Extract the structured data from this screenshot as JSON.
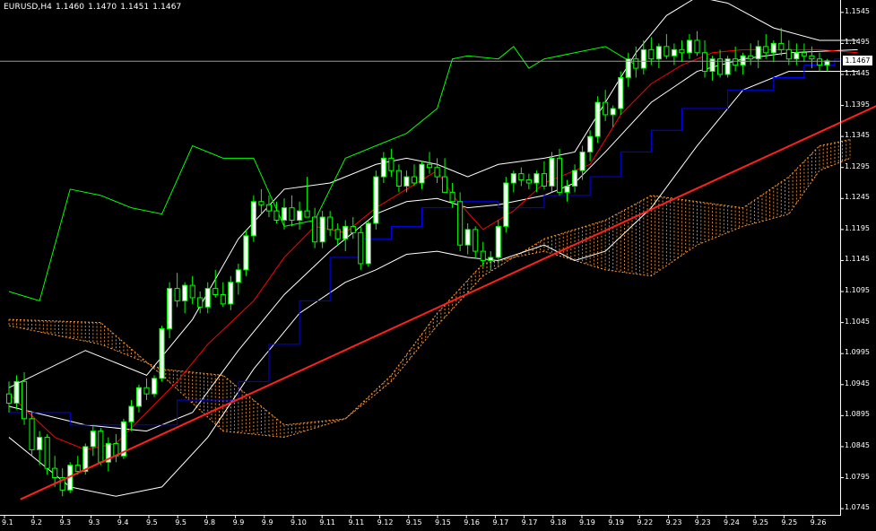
{
  "header": {
    "symbol": "EURUSD,H4",
    "open": "1.1460",
    "high": "1.1470",
    "low": "1.1451",
    "close": "1.1467"
  },
  "current_price_label": "1.1467",
  "colors": {
    "background": "#000000",
    "bull_candle": "#ffffff",
    "bear_candle": "#000000",
    "candle_outline": "#00ff00",
    "tenkan": "#ff0000",
    "kijun": "#0000ff",
    "chikou": "#00ff00",
    "bollinger": "#ffffff",
    "cloud": "#ff9933",
    "trendline": "#ff2020",
    "axis": "#ffffff"
  },
  "chart_data": {
    "type": "candlestick",
    "symbol": "EURUSD",
    "timeframe": "H4",
    "y_ticks": [
      "1.1545",
      "1.1495",
      "1.1445",
      "1.1395",
      "1.1345",
      "1.1295",
      "1.1245",
      "1.1195",
      "1.1145",
      "1.1095",
      "1.1045",
      "1.0995",
      "1.0945",
      "1.0895",
      "1.0845",
      "1.0795",
      "1.0745"
    ],
    "x_ticks": [
      "9.1",
      "9.2",
      "9.3",
      "9.3",
      "9.4",
      "9.5",
      "9.5",
      "9.8",
      "9.9",
      "9.9",
      "9.10",
      "9.11",
      "9.11",
      "9.12",
      "9.15",
      "9.15",
      "9.16",
      "9.17",
      "9.17",
      "9.18",
      "9.19",
      "9.19",
      "9.22",
      "9.23",
      "9.23",
      "9.24",
      "9.25",
      "9.25",
      "9.26"
    ],
    "ylim": [
      1.0735,
      1.1565
    ],
    "current_price": 1.1467,
    "candles": [
      [
        1.093,
        1.095,
        1.09,
        1.0915
      ],
      [
        1.0915,
        1.096,
        1.0905,
        1.095
      ],
      [
        1.095,
        1.0965,
        1.088,
        1.089
      ],
      [
        1.089,
        1.09,
        1.083,
        1.084
      ],
      [
        1.084,
        1.087,
        1.0815,
        1.086
      ],
      [
        1.086,
        1.0865,
        1.08,
        1.081
      ],
      [
        1.081,
        1.083,
        1.078,
        1.0795
      ],
      [
        1.0795,
        1.081,
        1.0765,
        1.0775
      ],
      [
        1.0775,
        1.082,
        1.077,
        1.0815
      ],
      [
        1.0815,
        1.083,
        1.08,
        1.0805
      ],
      [
        1.0805,
        1.085,
        1.08,
        1.0845
      ],
      [
        1.0845,
        1.088,
        1.083,
        1.087
      ],
      [
        1.087,
        1.0875,
        1.0815,
        1.082
      ],
      [
        1.082,
        1.086,
        1.0805,
        1.085
      ],
      [
        1.085,
        1.0865,
        1.082,
        1.083
      ],
      [
        1.083,
        1.089,
        1.0825,
        1.0885
      ],
      [
        1.0885,
        1.092,
        1.087,
        1.091
      ],
      [
        1.091,
        1.0945,
        1.09,
        1.094
      ],
      [
        1.094,
        1.0955,
        1.092,
        1.093
      ],
      [
        1.093,
        1.096,
        1.0925,
        1.0955
      ],
      [
        1.0955,
        1.104,
        1.095,
        1.1035
      ],
      [
        1.1035,
        1.111,
        1.102,
        1.11
      ],
      [
        1.11,
        1.1125,
        1.107,
        1.108
      ],
      [
        1.108,
        1.111,
        1.106,
        1.1105
      ],
      [
        1.1105,
        1.112,
        1.1075,
        1.1085
      ],
      [
        1.1085,
        1.1095,
        1.106,
        1.107
      ],
      [
        1.107,
        1.111,
        1.106,
        1.11
      ],
      [
        1.11,
        1.113,
        1.1085,
        1.109
      ],
      [
        1.109,
        1.111,
        1.107,
        1.1075
      ],
      [
        1.1075,
        1.112,
        1.1065,
        1.111
      ],
      [
        1.111,
        1.114,
        1.109,
        1.113
      ],
      [
        1.113,
        1.1195,
        1.112,
        1.1185
      ],
      [
        1.1185,
        1.125,
        1.1175,
        1.124
      ],
      [
        1.124,
        1.126,
        1.122,
        1.1235
      ],
      [
        1.1235,
        1.125,
        1.1215,
        1.1225
      ],
      [
        1.1225,
        1.124,
        1.1205,
        1.121
      ],
      [
        1.121,
        1.1245,
        1.1195,
        1.123
      ],
      [
        1.123,
        1.125,
        1.12,
        1.121
      ],
      [
        1.121,
        1.124,
        1.1195,
        1.1225
      ],
      [
        1.1225,
        1.128,
        1.1215,
        1.1215
      ],
      [
        1.1215,
        1.123,
        1.1165,
        1.1175
      ],
      [
        1.1175,
        1.1225,
        1.1165,
        1.1215
      ],
      [
        1.1215,
        1.1225,
        1.1185,
        1.1195
      ],
      [
        1.1195,
        1.1205,
        1.117,
        1.118
      ],
      [
        1.118,
        1.121,
        1.116,
        1.12
      ],
      [
        1.12,
        1.1215,
        1.118,
        1.119
      ],
      [
        1.119,
        1.12,
        1.113,
        1.114
      ],
      [
        1.114,
        1.121,
        1.1135,
        1.1205
      ],
      [
        1.1205,
        1.129,
        1.1195,
        1.128
      ],
      [
        1.128,
        1.132,
        1.127,
        1.131
      ],
      [
        1.131,
        1.1325,
        1.128,
        1.129
      ],
      [
        1.129,
        1.13,
        1.1255,
        1.1265
      ],
      [
        1.1265,
        1.129,
        1.1255,
        1.128
      ],
      [
        1.128,
        1.13,
        1.1265,
        1.127
      ],
      [
        1.127,
        1.1305,
        1.126,
        1.13
      ],
      [
        1.13,
        1.132,
        1.1285,
        1.1295
      ],
      [
        1.1295,
        1.131,
        1.127,
        1.128
      ],
      [
        1.128,
        1.131,
        1.126,
        1.1255
      ],
      [
        1.1255,
        1.127,
        1.123,
        1.124
      ],
      [
        1.124,
        1.1255,
        1.116,
        1.117
      ],
      [
        1.117,
        1.1205,
        1.1155,
        1.1195
      ],
      [
        1.1195,
        1.12,
        1.115,
        1.116
      ],
      [
        1.116,
        1.1175,
        1.1135,
        1.1145
      ],
      [
        1.1145,
        1.116,
        1.113,
        1.115
      ],
      [
        1.115,
        1.121,
        1.114,
        1.12
      ],
      [
        1.12,
        1.128,
        1.119,
        1.127
      ],
      [
        1.127,
        1.129,
        1.1255,
        1.1285
      ],
      [
        1.1285,
        1.1295,
        1.1265,
        1.1275
      ],
      [
        1.1275,
        1.1285,
        1.126,
        1.127
      ],
      [
        1.127,
        1.129,
        1.1255,
        1.1285
      ],
      [
        1.1285,
        1.1305,
        1.126,
        1.1265
      ],
      [
        1.1265,
        1.132,
        1.1255,
        1.131
      ],
      [
        1.131,
        1.1325,
        1.125,
        1.1255
      ],
      [
        1.1255,
        1.1275,
        1.124,
        1.1265
      ],
      [
        1.1265,
        1.13,
        1.1255,
        1.129
      ],
      [
        1.129,
        1.133,
        1.1275,
        1.132
      ],
      [
        1.132,
        1.1355,
        1.1305,
        1.1345
      ],
      [
        1.1345,
        1.141,
        1.1335,
        1.14
      ],
      [
        1.14,
        1.142,
        1.137,
        1.138
      ],
      [
        1.138,
        1.1395,
        1.136,
        1.139
      ],
      [
        1.139,
        1.145,
        1.138,
        1.144
      ],
      [
        1.144,
        1.148,
        1.1425,
        1.147
      ],
      [
        1.147,
        1.149,
        1.144,
        1.1455
      ],
      [
        1.1455,
        1.15,
        1.1445,
        1.1485
      ],
      [
        1.1485,
        1.1505,
        1.146,
        1.147
      ],
      [
        1.147,
        1.1495,
        1.1455,
        1.149
      ],
      [
        1.149,
        1.151,
        1.147,
        1.1475
      ],
      [
        1.1475,
        1.1495,
        1.146,
        1.1485
      ],
      [
        1.1485,
        1.15,
        1.1465,
        1.148
      ],
      [
        1.148,
        1.151,
        1.147,
        1.15
      ],
      [
        1.15,
        1.1515,
        1.1475,
        1.148
      ],
      [
        1.148,
        1.15,
        1.144,
        1.145
      ],
      [
        1.145,
        1.1475,
        1.1435,
        1.147
      ],
      [
        1.147,
        1.1485,
        1.144,
        1.1445
      ],
      [
        1.1445,
        1.1475,
        1.144,
        1.147
      ],
      [
        1.147,
        1.149,
        1.145,
        1.146
      ],
      [
        1.146,
        1.148,
        1.1445,
        1.1475
      ],
      [
        1.1475,
        1.1495,
        1.146,
        1.147
      ],
      [
        1.147,
        1.15,
        1.1455,
        1.149
      ],
      [
        1.149,
        1.151,
        1.147,
        1.148
      ],
      [
        1.148,
        1.15,
        1.1465,
        1.1495
      ],
      [
        1.1495,
        1.152,
        1.1475,
        1.1485
      ],
      [
        1.1485,
        1.15,
        1.146,
        1.147
      ],
      [
        1.147,
        1.1495,
        1.146,
        1.148
      ],
      [
        1.148,
        1.1495,
        1.1465,
        1.1475
      ],
      [
        1.1475,
        1.149,
        1.1455,
        1.147
      ],
      [
        1.147,
        1.148,
        1.145,
        1.146
      ],
      [
        1.146,
        1.147,
        1.1451,
        1.1467
      ]
    ],
    "tenkan": [
      [
        0,
        1.093
      ],
      [
        6,
        1.086
      ],
      [
        10,
        1.084
      ],
      [
        14,
        1.085
      ],
      [
        18,
        1.09
      ],
      [
        22,
        1.095
      ],
      [
        26,
        1.101
      ],
      [
        32,
        1.108
      ],
      [
        36,
        1.115
      ],
      [
        40,
        1.12
      ],
      [
        44,
        1.119
      ],
      [
        48,
        1.123
      ],
      [
        52,
        1.126
      ],
      [
        56,
        1.129
      ],
      [
        58,
        1.125
      ],
      [
        62,
        1.1195
      ],
      [
        66,
        1.1225
      ],
      [
        70,
        1.127
      ],
      [
        76,
        1.13
      ],
      [
        80,
        1.138
      ],
      [
        84,
        1.143
      ],
      [
        88,
        1.146
      ],
      [
        92,
        1.148
      ],
      [
        96,
        1.1485
      ],
      [
        102,
        1.1485
      ],
      [
        106,
        1.1485
      ],
      [
        111,
        1.148
      ]
    ],
    "kijun": [
      [
        0,
        1.09
      ],
      [
        8,
        1.088
      ],
      [
        16,
        1.088
      ],
      [
        22,
        1.092
      ],
      [
        30,
        1.095
      ],
      [
        34,
        1.101
      ],
      [
        38,
        1.108
      ],
      [
        42,
        1.115
      ],
      [
        46,
        1.118
      ],
      [
        50,
        1.12
      ],
      [
        54,
        1.123
      ],
      [
        58,
        1.124
      ],
      [
        64,
        1.123
      ],
      [
        70,
        1.125
      ],
      [
        76,
        1.128
      ],
      [
        80,
        1.132
      ],
      [
        84,
        1.1355
      ],
      [
        88,
        1.139
      ],
      [
        94,
        1.142
      ],
      [
        100,
        1.144
      ],
      [
        104,
        1.146
      ],
      [
        108,
        1.147
      ],
      [
        111,
        1.147
      ]
    ],
    "chikou": [
      [
        0,
        1.1095
      ],
      [
        4,
        1.108
      ],
      [
        8,
        1.126
      ],
      [
        12,
        1.125
      ],
      [
        16,
        1.123
      ],
      [
        20,
        1.122
      ],
      [
        24,
        1.133
      ],
      [
        28,
        1.131
      ],
      [
        32,
        1.131
      ],
      [
        36,
        1.12
      ],
      [
        40,
        1.121
      ],
      [
        44,
        1.131
      ],
      [
        48,
        1.133
      ],
      [
        52,
        1.135
      ],
      [
        56,
        1.139
      ],
      [
        58,
        1.147
      ],
      [
        60,
        1.1475
      ],
      [
        64,
        1.147
      ],
      [
        66,
        1.149
      ],
      [
        68,
        1.1455
      ],
      [
        70,
        1.147
      ],
      [
        74,
        1.148
      ],
      [
        78,
        1.149
      ],
      [
        82,
        1.146
      ]
    ],
    "bb_upper": [
      [
        0,
        1.094
      ],
      [
        10,
        1.1
      ],
      [
        18,
        1.096
      ],
      [
        24,
        1.105
      ],
      [
        30,
        1.118
      ],
      [
        36,
        1.126
      ],
      [
        42,
        1.127
      ],
      [
        48,
        1.13
      ],
      [
        52,
        1.131
      ],
      [
        56,
        1.13
      ],
      [
        60,
        1.128
      ],
      [
        64,
        1.13
      ],
      [
        70,
        1.131
      ],
      [
        74,
        1.132
      ],
      [
        78,
        1.14
      ],
      [
        82,
        1.148
      ],
      [
        86,
        1.154
      ],
      [
        90,
        1.157
      ],
      [
        94,
        1.156
      ],
      [
        100,
        1.152
      ],
      [
        106,
        1.15
      ],
      [
        111,
        1.15
      ]
    ],
    "bb_middle": [
      [
        0,
        1.091
      ],
      [
        10,
        1.088
      ],
      [
        18,
        1.087
      ],
      [
        24,
        1.09
      ],
      [
        30,
        1.1
      ],
      [
        36,
        1.109
      ],
      [
        42,
        1.116
      ],
      [
        48,
        1.122
      ],
      [
        52,
        1.124
      ],
      [
        56,
        1.1245
      ],
      [
        60,
        1.123
      ],
      [
        64,
        1.1235
      ],
      [
        70,
        1.125
      ],
      [
        74,
        1.127
      ],
      [
        78,
        1.132
      ],
      [
        84,
        1.14
      ],
      [
        90,
        1.145
      ],
      [
        96,
        1.147
      ],
      [
        102,
        1.148
      ],
      [
        111,
        1.1485
      ]
    ],
    "bb_lower": [
      [
        0,
        1.086
      ],
      [
        8,
        1.078
      ],
      [
        14,
        1.0765
      ],
      [
        20,
        1.078
      ],
      [
        26,
        1.086
      ],
      [
        32,
        1.097
      ],
      [
        38,
        1.106
      ],
      [
        44,
        1.111
      ],
      [
        48,
        1.113
      ],
      [
        52,
        1.1155
      ],
      [
        56,
        1.116
      ],
      [
        60,
        1.115
      ],
      [
        64,
        1.1145
      ],
      [
        70,
        1.117
      ],
      [
        74,
        1.1145
      ],
      [
        78,
        1.116
      ],
      [
        84,
        1.123
      ],
      [
        90,
        1.133
      ],
      [
        96,
        1.142
      ],
      [
        102,
        1.145
      ],
      [
        111,
        1.145
      ]
    ],
    "senkou_a": [
      [
        0,
        1.104
      ],
      [
        12,
        1.101
      ],
      [
        20,
        1.097
      ],
      [
        28,
        1.096
      ],
      [
        36,
        1.088
      ],
      [
        44,
        1.089
      ],
      [
        50,
        1.095
      ],
      [
        56,
        1.104
      ],
      [
        62,
        1.112
      ],
      [
        70,
        1.118
      ],
      [
        78,
        1.121
      ],
      [
        84,
        1.125
      ],
      [
        90,
        1.124
      ],
      [
        96,
        1.123
      ],
      [
        102,
        1.128
      ],
      [
        106,
        1.133
      ],
      [
        110,
        1.134
      ]
    ],
    "senkou_b": [
      [
        0,
        1.105
      ],
      [
        12,
        1.1045
      ],
      [
        20,
        1.096
      ],
      [
        28,
        1.087
      ],
      [
        36,
        1.086
      ],
      [
        44,
        1.089
      ],
      [
        50,
        1.096
      ],
      [
        56,
        1.106
      ],
      [
        62,
        1.114
      ],
      [
        70,
        1.116
      ],
      [
        78,
        1.113
      ],
      [
        84,
        1.112
      ],
      [
        90,
        1.117
      ],
      [
        96,
        1.12
      ],
      [
        102,
        1.122
      ],
      [
        106,
        1.129
      ],
      [
        110,
        1.131
      ]
    ],
    "trendline": [
      [
        1.5,
        1.076
      ],
      [
        118,
        1.142
      ]
    ]
  }
}
